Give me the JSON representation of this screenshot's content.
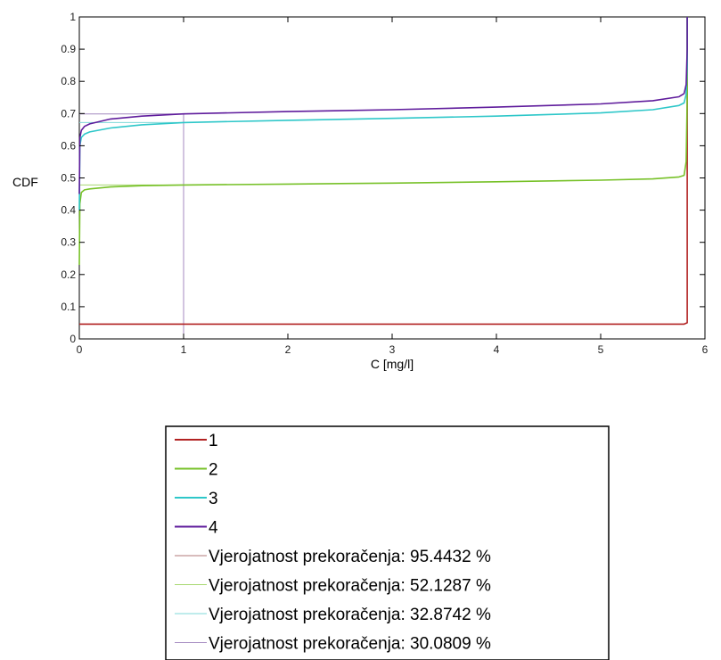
{
  "chart_data": {
    "type": "line",
    "xlabel": "C [mg/l]",
    "ylabel": "CDF",
    "xlim": [
      0,
      6
    ],
    "ylim": [
      0,
      1
    ],
    "x_ticks": [
      0,
      1,
      2,
      3,
      4,
      5,
      6
    ],
    "y_ticks": [
      0,
      0.1,
      0.2,
      0.3,
      0.4,
      0.5,
      0.6,
      0.7,
      0.8,
      0.9,
      1
    ],
    "x_tick_labels": [
      "0",
      "1",
      "2",
      "3",
      "4",
      "5",
      "6"
    ],
    "y_tick_labels": [
      "0",
      "0.1",
      "0.2",
      "0.3",
      "0.4",
      "0.5",
      "0.6",
      "0.7",
      "0.8",
      "0.9",
      "1"
    ],
    "grid": false,
    "legend_position": "below",
    "series": [
      {
        "name": "1",
        "color": "#b22222",
        "x": [
          0,
          0.5,
          1,
          2,
          3,
          4,
          5,
          5.8,
          5.83,
          5.83
        ],
        "y": [
          0.046,
          0.046,
          0.046,
          0.046,
          0.046,
          0.046,
          0.046,
          0.046,
          0.05,
          1.0
        ]
      },
      {
        "name": "2",
        "color": "#77c128",
        "x": [
          0,
          0.005,
          0.02,
          0.05,
          0.1,
          0.3,
          0.6,
          1,
          2,
          3,
          4,
          5,
          5.5,
          5.75,
          5.8,
          5.82,
          5.83,
          5.83
        ],
        "y": [
          0.23,
          0.42,
          0.455,
          0.463,
          0.466,
          0.472,
          0.476,
          0.478,
          0.481,
          0.484,
          0.488,
          0.493,
          0.497,
          0.503,
          0.508,
          0.55,
          0.75,
          1.0
        ]
      },
      {
        "name": "3",
        "color": "#2ec7c9",
        "x": [
          0,
          0.005,
          0.02,
          0.05,
          0.1,
          0.3,
          0.6,
          1,
          2,
          3,
          4,
          5,
          5.5,
          5.75,
          5.8,
          5.82,
          5.83,
          5.83
        ],
        "y": [
          0.4,
          0.6,
          0.626,
          0.636,
          0.643,
          0.655,
          0.665,
          0.672,
          0.679,
          0.685,
          0.692,
          0.702,
          0.712,
          0.725,
          0.733,
          0.76,
          0.85,
          1.0
        ]
      },
      {
        "name": "4",
        "color": "#5f1c9c",
        "x": [
          0,
          0.005,
          0.02,
          0.05,
          0.1,
          0.3,
          0.6,
          1,
          2,
          3,
          4,
          5,
          5.5,
          5.75,
          5.8,
          5.82,
          5.83,
          5.83
        ],
        "y": [
          0.45,
          0.625,
          0.648,
          0.66,
          0.668,
          0.683,
          0.692,
          0.699,
          0.706,
          0.712,
          0.72,
          0.73,
          0.74,
          0.752,
          0.762,
          0.79,
          0.9,
          1.0
        ]
      }
    ],
    "reference_lines": [
      {
        "name": "Vjerojatnost prekoračenja: 95.4432 %",
        "color": "#b07a7a",
        "x": [
          1,
          1,
          0
        ],
        "y": [
          0,
          0.046,
          0.046
        ]
      },
      {
        "name": "Vjerojatnost prekoračenja: 52.1287 %",
        "color": "#a8d870",
        "x": [
          1,
          1,
          0
        ],
        "y": [
          0,
          0.478,
          0.478
        ]
      },
      {
        "name": "Vjerojatnost prekoračenja: 32.8742 %",
        "color": "#7fd9da",
        "x": [
          1,
          1,
          0
        ],
        "y": [
          0,
          0.672,
          0.672
        ]
      },
      {
        "name": "Vjerojatnost prekoračenja: 30.0809 %",
        "color": "#a48ac0",
        "x": [
          1,
          1,
          0
        ],
        "y": [
          0,
          0.699,
          0.699
        ]
      }
    ]
  }
}
